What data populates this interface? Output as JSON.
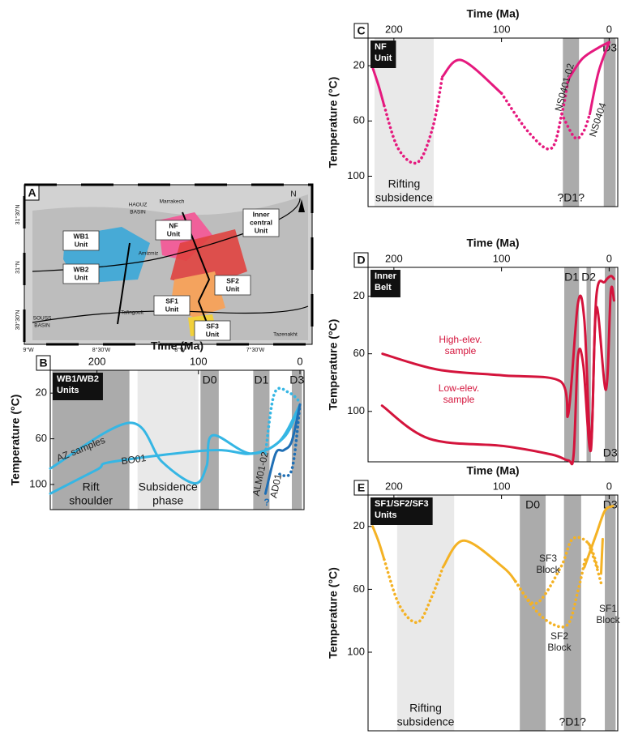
{
  "map": {
    "panel": "A",
    "units": [
      [
        "WB1",
        "Unit"
      ],
      [
        "WB2",
        "Unit"
      ],
      [
        "NF",
        "Unit"
      ],
      [
        "Inner",
        "central",
        "Unit"
      ],
      [
        "SF2",
        "Unit"
      ],
      [
        "SF1",
        "Unit"
      ],
      [
        "SF3",
        "Unit"
      ]
    ],
    "places": [
      "HAOUZ",
      "BASIN",
      "Marrakech",
      "Amizmiz",
      "Tafingoult",
      "SOUSS",
      "BASIN",
      "Tazenakht",
      "N"
    ],
    "lat_labels": [
      "31°30'N",
      "31°N",
      "30°30'N"
    ],
    "lon_labels": [
      "9°W",
      "8°30'W",
      "8°W",
      "7°30'W"
    ]
  },
  "chart_data": [
    {
      "panel": "B",
      "type": "line",
      "xlabel": "Time (Ma)",
      "ylabel": "Temperature (°C)",
      "unit_box": [
        "WB1/WB2",
        "Units"
      ],
      "xlim": [
        246,
        -4
      ],
      "xticks": [
        200,
        100,
        0
      ],
      "ylim": [
        0,
        122
      ],
      "yticks": [
        20,
        60,
        100
      ],
      "bands": [
        {
          "x": [
            244,
            168
          ],
          "shade": "dark",
          "label": [
            "Rift",
            "shoulder"
          ],
          "label_at": "bottom"
        },
        {
          "x": [
            160,
            100
          ],
          "shade": "light",
          "label": [
            "Subsidence",
            "phase"
          ],
          "label_at": "bottom"
        },
        {
          "x": [
            98,
            80
          ],
          "shade": "dark",
          "label": [
            "D0"
          ],
          "label_at": "top"
        },
        {
          "x": [
            46,
            30
          ],
          "shade": "dark",
          "label": [
            "D1"
          ],
          "label_at": "top"
        },
        {
          "x": [
            8,
            -2
          ],
          "shade": "dark",
          "label": [
            "D3"
          ],
          "label_at": "top"
        }
      ],
      "series": [
        {
          "color": "#35b6e4",
          "style": "solid",
          "x": [
            246,
            168,
            136,
            104,
            92,
            86,
            48,
            16,
            0
          ],
          "values": [
            86,
            46,
            80,
            99,
            84,
            57,
            73,
            59,
            30
          ]
        },
        {
          "color": "#35b6e4",
          "style": "solid",
          "x": [
            246,
            200,
            184,
            88,
            48,
            20,
            0
          ],
          "values": [
            108,
            87,
            80,
            70,
            73,
            62,
            30
          ]
        },
        {
          "color": "#35b6e4",
          "style": "dotted",
          "x": [
            34,
            25,
            10,
            0
          ],
          "values": [
            73,
            20,
            20,
            28
          ]
        },
        {
          "color": "#1f6fb5",
          "style": "solid",
          "x": [
            34,
            24,
            16,
            8,
            0
          ],
          "values": [
            108,
            73,
            70,
            62,
            30
          ]
        },
        {
          "color": "#1f6fb5",
          "style": "dotted",
          "x": [
            20,
            8,
            0
          ],
          "values": [
            91,
            87,
            30
          ]
        }
      ],
      "annotations": [
        {
          "lines": [
            "AZ samples"
          ],
          "color": "#222222"
        },
        {
          "lines": [
            "BO01"
          ],
          "color": "#222222"
        },
        {
          "lines": [
            "ALM01-02"
          ],
          "color": "#222222"
        },
        {
          "lines": [
            "AD01"
          ],
          "color": "#222222"
        },
        {
          "lines": [
            "?"
          ],
          "color": "#1f6fb5"
        }
      ]
    },
    {
      "panel": "C",
      "type": "line",
      "xlabel": "Time (Ma)",
      "ylabel": "Temperature (°C)",
      "unit_box": [
        "NF",
        "Unit"
      ],
      "xlim": [
        224,
        -8
      ],
      "xticks": [
        200,
        100,
        0
      ],
      "ylim": [
        0,
        122
      ],
      "yticks": [
        20,
        60,
        100
      ],
      "bands": [
        {
          "x": [
            218,
            163
          ],
          "shade": "light",
          "label": [
            "Rifting",
            "subsidence"
          ],
          "label_at": "bottom"
        },
        {
          "x": [
            43,
            28
          ],
          "shade": "dark",
          "label": [
            "?D1?"
          ],
          "label_at": "bottom"
        },
        {
          "x": [
            5,
            -6
          ],
          "shade": "dark",
          "label": [
            "D3"
          ],
          "label_at": "top"
        }
      ],
      "series": [
        {
          "color": "#e5197e",
          "style": "solid",
          "x": [
            219.5,
            214,
            209
          ],
          "values": [
            22,
            35,
            49
          ]
        },
        {
          "color": "#e5197e",
          "style": "dotted",
          "x": [
            209,
            196,
            178,
            164,
            155
          ],
          "values": [
            49,
            80,
            90,
            65,
            28
          ]
        },
        {
          "color": "#e5197e",
          "style": "solid",
          "x": [
            155,
            137,
            100
          ],
          "values": [
            28,
            16,
            40
          ]
        },
        {
          "color": "#e5197e",
          "style": "dotted",
          "x": [
            100,
            75,
            54,
            44,
            38
          ],
          "values": [
            40,
            68,
            80,
            55,
            30
          ]
        },
        {
          "color": "#e5197e",
          "style": "solid",
          "x": [
            38,
            25,
            10,
            0
          ],
          "values": [
            30,
            15,
            7,
            3
          ]
        },
        {
          "color": "#e5197e",
          "style": "dotted",
          "x": [
            44,
            32,
            24,
            18
          ],
          "values": [
            55,
            72,
            68,
            55
          ]
        },
        {
          "color": "#e5197e",
          "style": "solid",
          "x": [
            18,
            10,
            0
          ],
          "values": [
            55,
            25,
            3
          ]
        }
      ],
      "annotations": [
        {
          "lines": [
            "NS0401-02"
          ],
          "color": "#222222"
        },
        {
          "lines": [
            "NS0404"
          ],
          "color": "#222222"
        }
      ]
    },
    {
      "panel": "D",
      "type": "line",
      "xlabel": "Time (Ma)",
      "ylabel": "Temperature (°C)",
      "unit_box": [
        "Inner",
        "Belt"
      ],
      "xlim": [
        224,
        -8
      ],
      "xticks": [
        200,
        100,
        0
      ],
      "ylim": [
        0,
        135
      ],
      "yticks": [
        20,
        60,
        100
      ],
      "bands": [
        {
          "x": [
            41.7,
            28
          ],
          "shade": "dark",
          "label": [
            "D1"
          ],
          "label_at": "top"
        },
        {
          "x": [
            21,
            17
          ],
          "shade": "dark",
          "label": [
            "D2"
          ],
          "label_at": "top"
        },
        {
          "x": [
            4,
            -6
          ],
          "shade": "dark",
          "label": [
            "D3"
          ],
          "label_at": "bottom"
        }
      ],
      "series": [
        {
          "color": "#d4143c",
          "style": "solid",
          "x": [
            210.6,
            159,
            98.5,
            45.5,
            38,
            29,
            23,
            17,
            12,
            4,
            -1.5,
            -4.5
          ],
          "values": [
            60,
            71,
            75,
            79,
            102,
            25,
            37,
            123,
            21,
            10,
            6,
            8
          ]
        },
        {
          "color": "#d4143c",
          "style": "solid",
          "x": [
            211,
            167,
            98.5,
            53,
            38,
            33,
            29,
            24,
            17,
            12,
            3,
            -1.5,
            -4.5
          ],
          "values": [
            96,
            119,
            124,
            130,
            134,
            130,
            62,
            68,
            127,
            28,
            85,
            17,
            23
          ]
        }
      ],
      "annotations": [
        {
          "lines": [
            "High-elev.",
            "sample"
          ],
          "color": "#d4143c"
        },
        {
          "lines": [
            "Low-elev.",
            "sample"
          ],
          "color": "#d4143c"
        }
      ]
    },
    {
      "panel": "E",
      "type": "line",
      "xlabel": "Time (Ma)",
      "ylabel": "Temperature (°C)",
      "unit_box": [
        "SF1/SF2/SF3",
        "Units"
      ],
      "xlim": [
        224,
        -8
      ],
      "xticks": [
        200,
        100,
        0
      ],
      "ylim": [
        0,
        150
      ],
      "yticks": [
        20,
        60,
        100
      ],
      "bands": [
        {
          "x": [
            197,
            144
          ],
          "shade": "light",
          "label": [
            "Rifting",
            "subsidence"
          ],
          "label_at": "bottom"
        },
        {
          "x": [
            83,
            59
          ],
          "shade": "dark",
          "label": [
            "D0"
          ],
          "label_at": "top"
        },
        {
          "x": [
            42,
            26
          ],
          "shade": "dark",
          "label": [
            "?D1?"
          ],
          "label_at": "bottom"
        },
        {
          "x": [
            4,
            -6
          ],
          "shade": "dark",
          "label": [
            "D3"
          ],
          "label_at": "top"
        }
      ],
      "series": [
        {
          "color": "#f4b224",
          "style": "solid",
          "x": [
            219.7,
            214,
            209
          ],
          "values": [
            20,
            30,
            41
          ]
        },
        {
          "color": "#f4b224",
          "style": "dotted",
          "x": [
            209,
            195,
            178,
            165,
            154.5
          ],
          "values": [
            41,
            70,
            81,
            65,
            46
          ]
        },
        {
          "color": "#f4b224",
          "style": "solid",
          "x": [
            154.5,
            135,
            98.5,
            87
          ],
          "values": [
            46,
            29,
            46,
            55
          ]
        },
        {
          "color": "#f4b224",
          "style": "dotted",
          "x": [
            87,
            70,
            53,
            38,
            29,
            22
          ],
          "values": [
            55,
            72,
            82,
            82,
            61,
            40
          ]
        },
        {
          "color": "#f4b224",
          "style": "dotted",
          "x": [
            87,
            68,
            45,
            34,
            19,
            10
          ],
          "values": [
            55,
            69,
            46,
            28,
            31,
            48
          ]
        },
        {
          "color": "#f4b224",
          "style": "solid",
          "x": [
            23,
            12,
            4,
            -3.5
          ],
          "values": [
            46,
            25,
            10,
            7
          ]
        },
        {
          "color": "#f4b224",
          "style": "dotted",
          "x": [
            19,
            12,
            7.5
          ],
          "values": [
            31,
            45,
            56
          ]
        },
        {
          "color": "#f4b224",
          "style": "solid",
          "x": [
            7.5,
            6
          ],
          "values": [
            50,
            28
          ]
        }
      ],
      "annotations": [
        {
          "lines": [
            "SF3",
            "Block"
          ],
          "color": "#222222"
        },
        {
          "lines": [
            "SF2",
            "Block"
          ],
          "color": "#222222"
        },
        {
          "lines": [
            "SF1",
            "Block"
          ],
          "color": "#222222"
        }
      ]
    }
  ]
}
